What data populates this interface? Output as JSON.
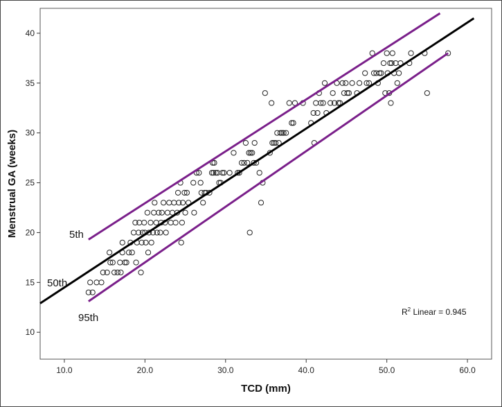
{
  "chart_data": {
    "type": "scatter",
    "xlabel": "TCD (mm)",
    "ylabel": "Menstrual GA (weeks)",
    "xlim": [
      7,
      63
    ],
    "ylim": [
      7.3,
      42.5
    ],
    "x_ticks": [
      10.0,
      20.0,
      30.0,
      40.0,
      50.0,
      60.0
    ],
    "x_tick_labels": [
      "10.0",
      "20.0",
      "30.0",
      "40.0",
      "50.0",
      "60.0"
    ],
    "y_ticks": [
      10,
      15,
      20,
      25,
      30,
      35,
      40
    ],
    "y_tick_labels": [
      "10",
      "15",
      "20",
      "25",
      "30",
      "35",
      "40"
    ],
    "annotation": {
      "prefix": "R",
      "sup": "2",
      "text": " Linear = 0.945"
    },
    "lines": [
      {
        "name": "5th",
        "color": "#7a1f8a",
        "x": [
          13.0,
          56.6
        ],
        "y": [
          19.3,
          42.0
        ]
      },
      {
        "name": "50th",
        "color": "#000000",
        "x": [
          7.0,
          60.8
        ],
        "y": [
          12.9,
          41.5
        ]
      },
      {
        "name": "95th",
        "color": "#7a1f8a",
        "x": [
          13.0,
          57.6
        ],
        "y": [
          13.1,
          38.0
        ]
      }
    ],
    "points": [
      [
        13.0,
        14
      ],
      [
        13.5,
        14
      ],
      [
        13.2,
        15
      ],
      [
        14.0,
        15
      ],
      [
        14.6,
        15
      ],
      [
        14.8,
        16
      ],
      [
        15.3,
        16
      ],
      [
        15.7,
        17
      ],
      [
        15.6,
        18
      ],
      [
        16.0,
        17
      ],
      [
        16.2,
        16
      ],
      [
        16.6,
        16
      ],
      [
        16.9,
        17
      ],
      [
        17.0,
        16
      ],
      [
        17.2,
        18
      ],
      [
        17.2,
        19
      ],
      [
        17.5,
        17
      ],
      [
        17.7,
        17
      ],
      [
        18.0,
        18
      ],
      [
        18.2,
        19
      ],
      [
        18.4,
        18
      ],
      [
        18.6,
        20
      ],
      [
        18.8,
        21
      ],
      [
        18.9,
        17
      ],
      [
        19.0,
        19
      ],
      [
        19.2,
        20
      ],
      [
        19.3,
        21
      ],
      [
        19.5,
        16
      ],
      [
        19.6,
        19
      ],
      [
        19.7,
        20
      ],
      [
        19.9,
        21
      ],
      [
        20.0,
        20
      ],
      [
        20.1,
        19
      ],
      [
        20.3,
        22
      ],
      [
        20.4,
        18
      ],
      [
        20.5,
        20
      ],
      [
        20.7,
        21
      ],
      [
        20.8,
        19
      ],
      [
        21.0,
        20
      ],
      [
        21.1,
        22
      ],
      [
        21.2,
        23
      ],
      [
        21.4,
        21
      ],
      [
        21.5,
        20
      ],
      [
        21.7,
        22
      ],
      [
        21.9,
        20
      ],
      [
        22.0,
        21
      ],
      [
        22.1,
        22
      ],
      [
        22.3,
        23
      ],
      [
        22.5,
        21
      ],
      [
        22.6,
        20
      ],
      [
        22.8,
        22
      ],
      [
        23.0,
        23
      ],
      [
        23.2,
        21
      ],
      [
        23.4,
        22
      ],
      [
        23.6,
        23
      ],
      [
        23.8,
        21
      ],
      [
        24.0,
        22
      ],
      [
        24.1,
        24
      ],
      [
        24.2,
        23
      ],
      [
        24.4,
        25
      ],
      [
        24.5,
        19
      ],
      [
        24.6,
        21
      ],
      [
        24.7,
        23
      ],
      [
        24.9,
        24
      ],
      [
        25.0,
        22
      ],
      [
        25.2,
        24
      ],
      [
        25.4,
        23
      ],
      [
        26.0,
        25
      ],
      [
        26.1,
        22
      ],
      [
        26.4,
        26
      ],
      [
        26.7,
        26
      ],
      [
        26.9,
        25
      ],
      [
        27.0,
        24
      ],
      [
        27.2,
        23
      ],
      [
        27.4,
        24
      ],
      [
        27.6,
        24
      ],
      [
        28.0,
        24
      ],
      [
        28.3,
        26
      ],
      [
        28.4,
        27
      ],
      [
        28.5,
        26
      ],
      [
        28.6,
        27
      ],
      [
        28.8,
        26
      ],
      [
        29.0,
        26
      ],
      [
        29.2,
        25
      ],
      [
        29.4,
        25
      ],
      [
        29.6,
        26
      ],
      [
        29.8,
        26
      ],
      [
        30.5,
        26
      ],
      [
        31.0,
        28
      ],
      [
        31.5,
        26
      ],
      [
        31.7,
        26
      ],
      [
        32.0,
        27
      ],
      [
        32.3,
        27
      ],
      [
        32.5,
        29
      ],
      [
        32.7,
        27
      ],
      [
        32.9,
        28
      ],
      [
        33.0,
        20
      ],
      [
        33.1,
        28
      ],
      [
        33.3,
        28
      ],
      [
        33.5,
        27
      ],
      [
        33.6,
        29
      ],
      [
        33.8,
        27
      ],
      [
        34.2,
        26
      ],
      [
        34.4,
        23
      ],
      [
        34.6,
        25
      ],
      [
        34.9,
        34
      ],
      [
        35.5,
        28
      ],
      [
        35.7,
        33
      ],
      [
        35.8,
        29
      ],
      [
        36.0,
        29
      ],
      [
        36.2,
        29
      ],
      [
        36.4,
        30
      ],
      [
        36.6,
        29
      ],
      [
        36.8,
        30
      ],
      [
        37.0,
        30
      ],
      [
        37.2,
        30
      ],
      [
        37.5,
        30
      ],
      [
        37.9,
        33
      ],
      [
        38.2,
        31
      ],
      [
        38.4,
        31
      ],
      [
        38.6,
        33
      ],
      [
        39.6,
        33
      ],
      [
        40.6,
        31
      ],
      [
        40.9,
        32
      ],
      [
        41.0,
        29
      ],
      [
        41.2,
        33
      ],
      [
        41.4,
        32
      ],
      [
        41.6,
        34
      ],
      [
        41.8,
        33
      ],
      [
        42.1,
        33
      ],
      [
        42.3,
        35
      ],
      [
        42.5,
        32
      ],
      [
        43.0,
        33
      ],
      [
        43.3,
        34
      ],
      [
        43.5,
        33
      ],
      [
        43.8,
        35
      ],
      [
        44.0,
        33
      ],
      [
        44.2,
        33
      ],
      [
        44.5,
        35
      ],
      [
        44.7,
        34
      ],
      [
        44.9,
        35
      ],
      [
        45.1,
        34
      ],
      [
        45.3,
        34
      ],
      [
        45.7,
        35
      ],
      [
        46.3,
        34
      ],
      [
        46.6,
        35
      ],
      [
        47.3,
        36
      ],
      [
        47.5,
        35
      ],
      [
        47.8,
        35
      ],
      [
        48.2,
        38
      ],
      [
        48.4,
        36
      ],
      [
        48.7,
        36
      ],
      [
        48.9,
        35
      ],
      [
        49.1,
        36
      ],
      [
        49.3,
        36
      ],
      [
        49.6,
        37
      ],
      [
        49.8,
        34
      ],
      [
        50.0,
        38
      ],
      [
        50.1,
        36
      ],
      [
        50.3,
        34
      ],
      [
        50.4,
        37
      ],
      [
        50.5,
        33
      ],
      [
        50.6,
        37
      ],
      [
        50.7,
        38
      ],
      [
        50.9,
        36
      ],
      [
        51.1,
        37
      ],
      [
        51.3,
        35
      ],
      [
        51.5,
        36
      ],
      [
        51.7,
        37
      ],
      [
        52.8,
        37
      ],
      [
        53.0,
        38
      ],
      [
        54.7,
        38
      ],
      [
        55.0,
        34
      ],
      [
        57.6,
        38
      ]
    ]
  }
}
